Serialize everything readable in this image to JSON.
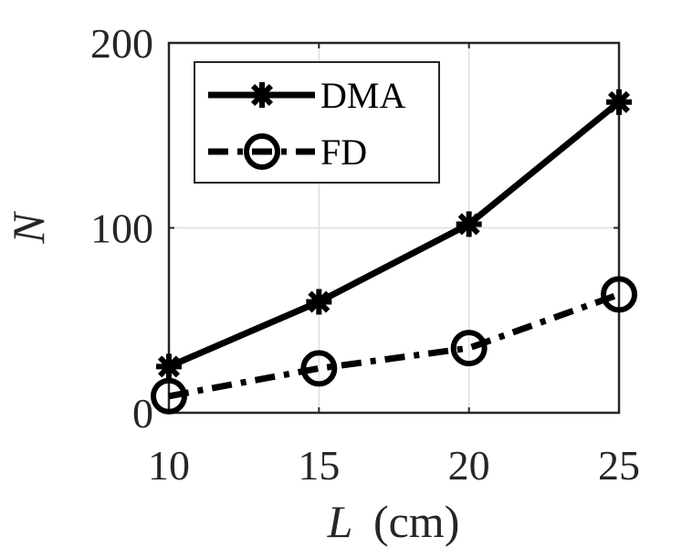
{
  "chart_data": {
    "type": "line",
    "x": [
      10,
      15,
      20,
      25
    ],
    "xlim": [
      10,
      25
    ],
    "ylim": [
      0,
      200
    ],
    "xticks": [
      10,
      15,
      20,
      25
    ],
    "yticks": [
      0,
      100,
      200
    ],
    "xtick_labels": [
      "10",
      "15",
      "20",
      "25"
    ],
    "ytick_labels": [
      "0",
      "100",
      "200"
    ],
    "xlabel_var": "L",
    "xlabel_unit": "(cm)",
    "ylabel": "N",
    "grid": true,
    "legend_position": "top-left",
    "series": [
      {
        "name": "DMA",
        "values": [
          25,
          60,
          102,
          168
        ],
        "marker": "asterisk",
        "line": "solid",
        "color": "#000000"
      },
      {
        "name": "FD",
        "values": [
          9,
          24,
          35,
          64
        ],
        "marker": "circle",
        "line": "dash-dot",
        "color": "#000000"
      }
    ]
  }
}
